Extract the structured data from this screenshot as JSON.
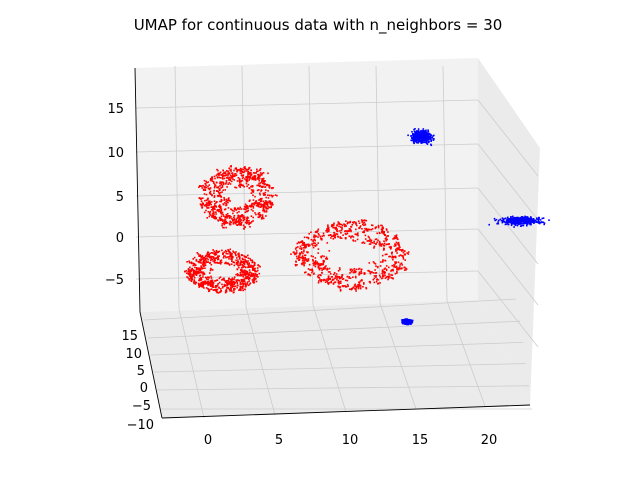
{
  "chart_data": {
    "type": "scatter",
    "projection": "3d",
    "title": "UMAP for continuous data with n_neighbors = 30",
    "x_ticks": [
      "0",
      "5",
      "10",
      "15",
      "20"
    ],
    "y_ticks": [
      "15",
      "10",
      "5",
      "0",
      "−5",
      "−10"
    ],
    "z_ticks": [
      "15",
      "10",
      "5",
      "0",
      "−5"
    ],
    "grid": true,
    "colors": {
      "red": "#ff0000",
      "blue": "#0000ff",
      "pane": "#f2f2f2",
      "grid": "#cccccc"
    },
    "clusters": [
      {
        "color": "red",
        "x": 2,
        "z": 5,
        "spread": [
          2.5,
          3.5
        ],
        "kind": "ring"
      },
      {
        "color": "red",
        "x": 1,
        "z": -4,
        "spread": [
          2.5,
          2.5
        ],
        "kind": "ring"
      },
      {
        "color": "red",
        "x": 10,
        "z": -2,
        "spread": [
          4.0,
          4.0
        ],
        "kind": "ring"
      },
      {
        "color": "blue",
        "x": 15,
        "z": 12,
        "spread": [
          1.2,
          1.2
        ],
        "kind": "blob"
      },
      {
        "color": "blue",
        "x": 22,
        "z": 2,
        "spread": [
          2.5,
          0.8
        ],
        "kind": "blob"
      },
      {
        "color": "blue",
        "x": 14,
        "z": -10,
        "spread": [
          0.5,
          0.4
        ],
        "kind": "blob"
      }
    ]
  }
}
